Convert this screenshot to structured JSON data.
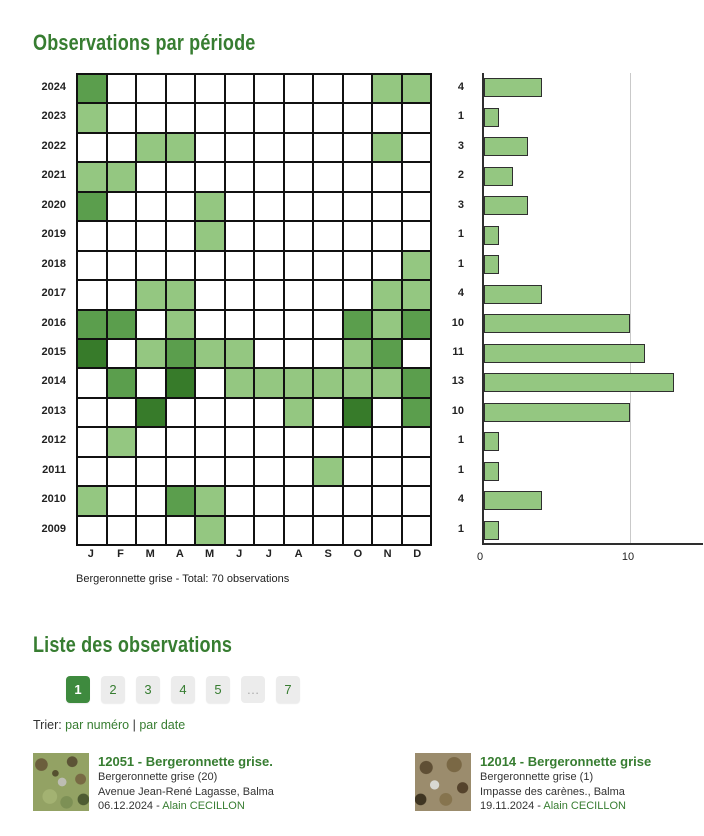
{
  "page": {
    "section1_title": "Observations par période",
    "section2_title": "Liste des observations",
    "caption": "Bergeronnette grise - Total: 70 observations"
  },
  "sort": {
    "label": "Trier: ",
    "by_number": "par numéro",
    "separator": " | ",
    "by_date": "par date"
  },
  "pagination": {
    "items": [
      "1",
      "2",
      "3",
      "4",
      "5",
      "…",
      "7"
    ],
    "active": "1"
  },
  "chart_data": {
    "type": "heatmap",
    "title": "Observations par période",
    "years": [
      2024,
      2023,
      2022,
      2021,
      2020,
      2019,
      2018,
      2017,
      2016,
      2015,
      2014,
      2013,
      2012,
      2011,
      2010,
      2009
    ],
    "months": [
      "J",
      "F",
      "M",
      "A",
      "M",
      "J",
      "J",
      "A",
      "S",
      "O",
      "N",
      "D"
    ],
    "heatmap_levels": [
      [
        2,
        0,
        0,
        0,
        0,
        0,
        0,
        0,
        0,
        0,
        1,
        1
      ],
      [
        1,
        0,
        0,
        0,
        0,
        0,
        0,
        0,
        0,
        0,
        0,
        0
      ],
      [
        0,
        0,
        1,
        1,
        0,
        0,
        0,
        0,
        0,
        0,
        1,
        0
      ],
      [
        1,
        1,
        0,
        0,
        0,
        0,
        0,
        0,
        0,
        0,
        0,
        0
      ],
      [
        2,
        0,
        0,
        0,
        1,
        0,
        0,
        0,
        0,
        0,
        0,
        0
      ],
      [
        0,
        0,
        0,
        0,
        1,
        0,
        0,
        0,
        0,
        0,
        0,
        0
      ],
      [
        0,
        0,
        0,
        0,
        0,
        0,
        0,
        0,
        0,
        0,
        0,
        1
      ],
      [
        0,
        0,
        1,
        1,
        0,
        0,
        0,
        0,
        0,
        0,
        1,
        1
      ],
      [
        2,
        2,
        0,
        1,
        0,
        0,
        0,
        0,
        0,
        2,
        1,
        2
      ],
      [
        3,
        0,
        1,
        2,
        1,
        1,
        0,
        0,
        0,
        1,
        2,
        0
      ],
      [
        0,
        2,
        0,
        3,
        0,
        1,
        1,
        1,
        1,
        1,
        1,
        2
      ],
      [
        0,
        0,
        3,
        0,
        0,
        0,
        0,
        1,
        0,
        3,
        0,
        2
      ],
      [
        0,
        1,
        0,
        0,
        0,
        0,
        0,
        0,
        0,
        0,
        0,
        0
      ],
      [
        0,
        0,
        0,
        0,
        0,
        0,
        0,
        0,
        1,
        0,
        0,
        0
      ],
      [
        1,
        0,
        0,
        2,
        1,
        0,
        0,
        0,
        0,
        0,
        0,
        0
      ],
      [
        0,
        0,
        0,
        0,
        1,
        0,
        0,
        0,
        0,
        0,
        0,
        0
      ]
    ],
    "level_colors": [
      "#ffffff",
      "#94c781",
      "#5b9e4d",
      "#377b2a"
    ],
    "bar_chart": {
      "type": "bar",
      "orientation": "horizontal",
      "values": [
        4,
        1,
        3,
        2,
        3,
        1,
        1,
        4,
        10,
        11,
        13,
        10,
        1,
        1,
        4,
        1
      ],
      "bar_color": "#94c781",
      "bar_border": "#2f2f2f",
      "xticks": [
        "0",
        "10"
      ],
      "xlim": [
        0,
        15
      ],
      "gridline_at": 10
    },
    "total": 70
  },
  "observations": [
    {
      "title": "12051 - Bergeronnette grise.",
      "species_count": "Bergeronnette grise (20)",
      "location": "Avenue Jean-René Lagasse, Balma",
      "date": "06.12.2024 - ",
      "author": "Alain CECILLON",
      "photo": "grass-bird-photo"
    },
    {
      "title": "12014 - Bergeronnette grise",
      "species_count": "Bergeronnette grise (1)",
      "location": "Impasse des carènes., Balma",
      "date": "19.11.2024 - ",
      "author": "Alain CECILLON",
      "photo": "rocks-bird-photo"
    }
  ],
  "colors": {
    "heading_green": "#377d31",
    "link_green": "#377d31",
    "active_page_bg": "#3e8a3e",
    "inactive_page_bg": "#ececec",
    "grid_line": "#111111",
    "axis_line": "#2e2e2e",
    "gridline_gray": "#c9c9c9"
  }
}
